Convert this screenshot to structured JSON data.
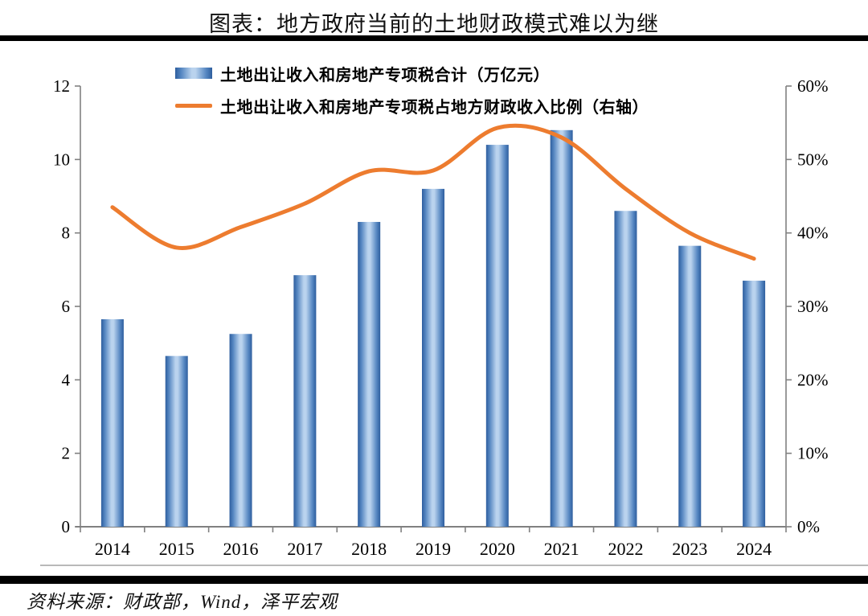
{
  "page": {
    "title": "图表：地方政府当前的土地财政模式难以为继",
    "source": "资料来源：财政部，Wind，泽平宏观"
  },
  "chart_data": {
    "type": "combo-bar-line",
    "title": "图表：地方政府当前的土地财政模式难以为继",
    "categories": [
      "2014",
      "2015",
      "2016",
      "2017",
      "2018",
      "2019",
      "2020",
      "2021",
      "2022",
      "2023",
      "2024"
    ],
    "series": [
      {
        "name": "土地出让收入和房地产专项税合计（万亿元）",
        "type": "bar",
        "axis": "left",
        "unit": "万亿元",
        "color": "#4A7EBB",
        "values": [
          5.65,
          4.65,
          5.25,
          6.85,
          8.3,
          9.2,
          10.4,
          10.8,
          8.6,
          7.65,
          6.7
        ]
      },
      {
        "name": "土地出让收入和房地产专项税占地方财政收入比例（右轴）",
        "type": "line",
        "axis": "right",
        "unit": "%",
        "color": "#ED7C2F",
        "values": [
          43.5,
          38.0,
          40.8,
          44.0,
          48.4,
          48.5,
          54.3,
          53.0,
          46.0,
          40.0,
          36.5
        ]
      }
    ],
    "left_axis": {
      "min": 0,
      "max": 12,
      "tick_labels": [
        "0",
        "2",
        "4",
        "6",
        "8",
        "10",
        "12"
      ]
    },
    "right_axis": {
      "min": 0,
      "max": 60,
      "tick_labels": [
        "0%",
        "10%",
        "20%",
        "30%",
        "40%",
        "50%",
        "60%"
      ]
    },
    "legend_position": "top",
    "grid": false
  },
  "colors": {
    "bar_edge": "#2E5E9E",
    "bar_center": "#BAD3EE",
    "line": "#ED7C2F",
    "axis": "#808080",
    "rule": "#000000"
  }
}
